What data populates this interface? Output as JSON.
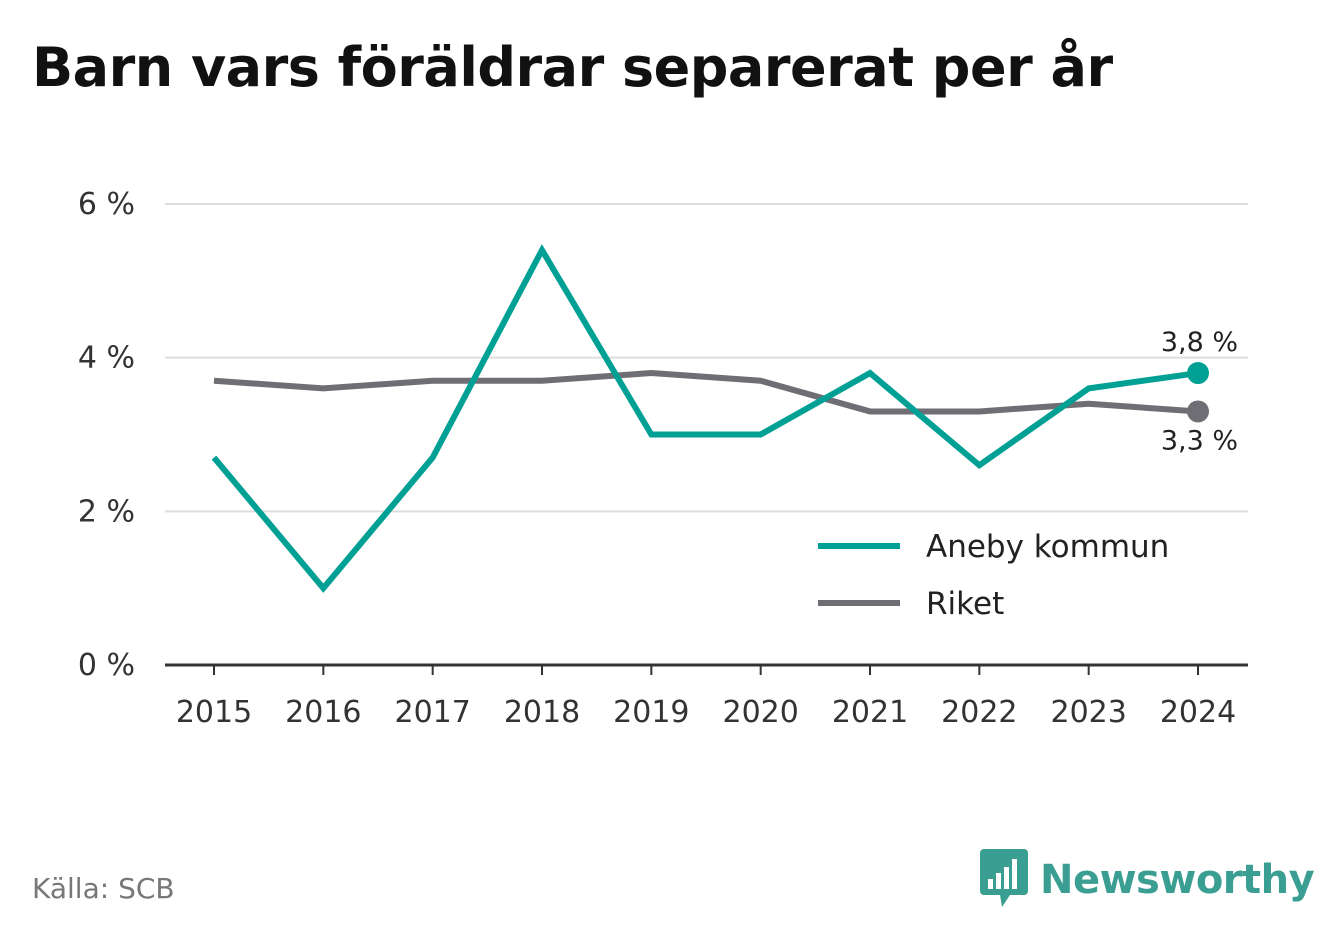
{
  "title": "Barn vars föräldrar separerat per år",
  "source": "Källa: SCB",
  "brand": {
    "name": "Newsworthy",
    "icon": "bar-chart-speech-bubble-icon",
    "color": "#3b9e93"
  },
  "chart_data": {
    "type": "line",
    "title": "Barn vars föräldrar separerat per år",
    "x": [
      "2015",
      "2016",
      "2017",
      "2018",
      "2019",
      "2020",
      "2021",
      "2022",
      "2023",
      "2024"
    ],
    "series": [
      {
        "name": "Aneby kommun",
        "color": "#00a095",
        "values": [
          2.7,
          1.0,
          2.7,
          5.4,
          3.0,
          3.0,
          3.8,
          2.6,
          3.6,
          3.8
        ],
        "end_label": "3,8 %"
      },
      {
        "name": "Riket",
        "color": "#6e6e74",
        "values": [
          3.7,
          3.6,
          3.7,
          3.7,
          3.8,
          3.7,
          3.3,
          3.3,
          3.4,
          3.3
        ],
        "end_label": "3,3 %"
      }
    ],
    "ylim": [
      0,
      6
    ],
    "y_ticks": [
      {
        "value": 0,
        "label": "0 %"
      },
      {
        "value": 2,
        "label": "2 %"
      },
      {
        "value": 4,
        "label": "4 %"
      },
      {
        "value": 6,
        "label": "6 %"
      }
    ],
    "grid": true,
    "legend_position": "bottom-right",
    "xlabel": "",
    "ylabel": ""
  }
}
